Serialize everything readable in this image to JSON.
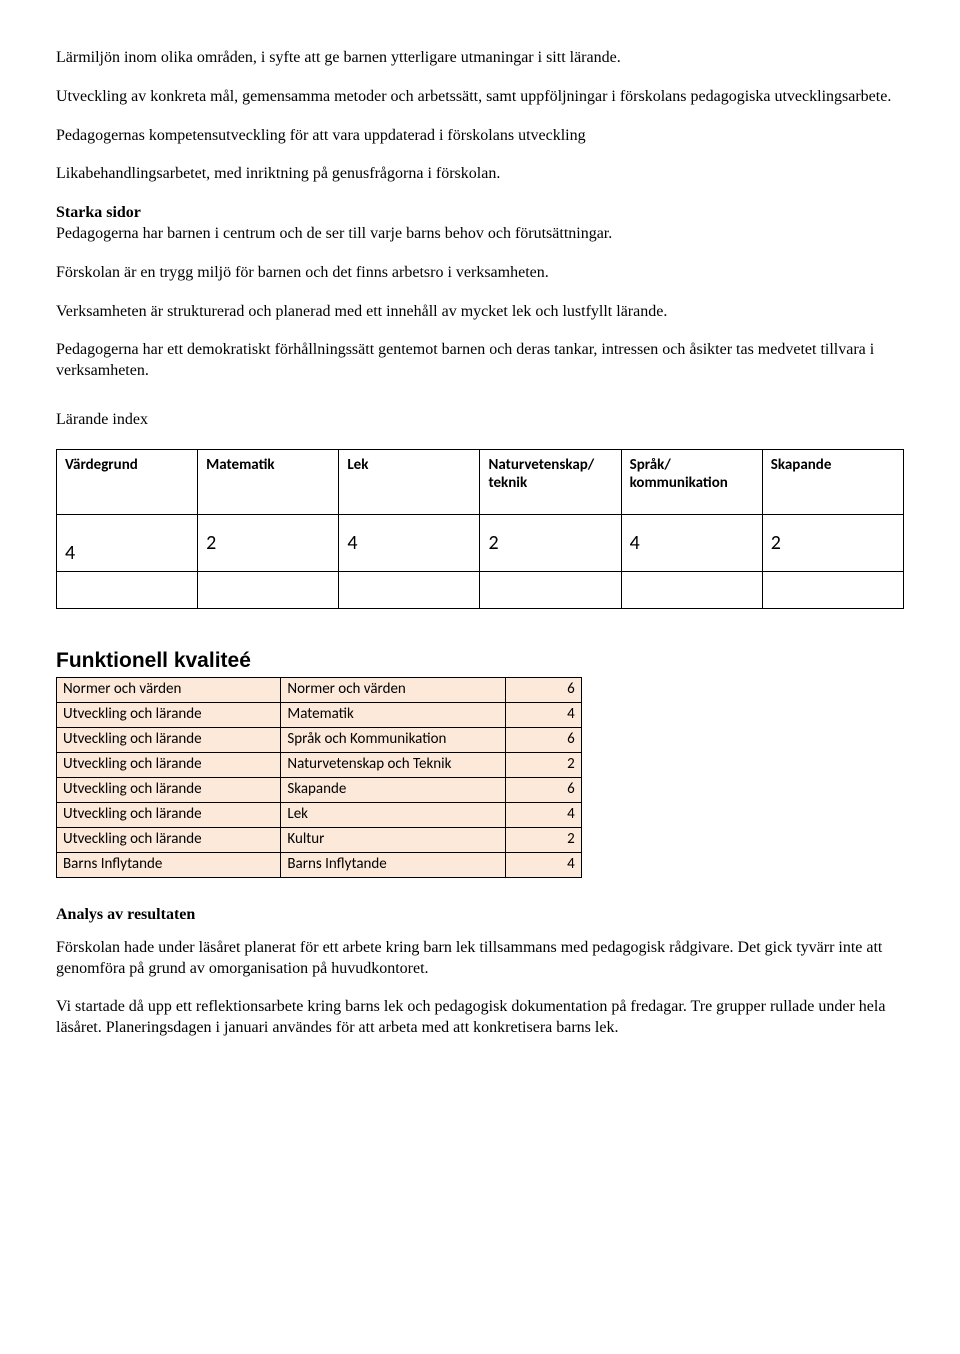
{
  "paragraphs": {
    "p1": "Lärmiljön inom olika områden, i syfte att ge barnen ytterligare utmaningar i sitt lärande.",
    "p2": "Utveckling av konkreta mål, gemensamma metoder och arbetssätt, samt uppföljningar i förskolans pedagogiska utvecklingsarbete.",
    "p3": "Pedagogernas kompetensutveckling för att vara uppdaterad i förskolans utveckling",
    "p4": "Likabehandlingsarbetet, med inriktning på genusfrågorna i förskolan.",
    "starka_sidor_label": "Starka sidor",
    "p5": "Pedagogerna har barnen i centrum och de ser till varje barns behov och förutsättningar.",
    "p6": "Förskolan är en trygg miljö för barnen och det finns arbetsro i verksamheten.",
    "p7": "Verksamheten är strukturerad och planerad med ett innehåll av mycket lek och lustfyllt lärande.",
    "p8": "Pedagogerna har ett demokratiskt förhållningssätt gentemot barnen och deras tankar, intressen och åsikter tas medvetet tillvara i verksamheten.",
    "larande_index_label": "Lärande index",
    "analys_heading": "Analys av resultaten",
    "p9": "Förskolan hade under läsåret planerat för ett arbete kring barn lek tillsammans med pedagogisk rådgivare. Det gick tyvärr inte att genomföra på grund av omorganisation på huvudkontoret.",
    "p10": "Vi startade då upp ett reflektionsarbete kring barns lek och pedagogisk dokumentation på fredagar. Tre grupper rullade under hela läsåret. Planeringsdagen i januari användes för att arbeta med att konkretisera barns lek."
  },
  "index_table": {
    "headers": {
      "c0": "Värdegrund",
      "c1": "Matematik",
      "c2": "Lek",
      "c3a": "Naturvetenskap/",
      "c3b": "teknik",
      "c4a": "Språk/",
      "c4b": "kommunikation",
      "c5": "Skapande"
    },
    "values": {
      "v0": "4",
      "v1": "2",
      "v2": "4",
      "v3": "2",
      "v4": "4",
      "v5": "2"
    }
  },
  "functional_quality": {
    "title": "Funktionell kvaliteé",
    "rows": [
      {
        "a": "Normer och värden",
        "b": "Normer och värden",
        "n": "6"
      },
      {
        "a": "Utveckling och lärande",
        "b": "Matematik",
        "n": "4"
      },
      {
        "a": "Utveckling och lärande",
        "b": "Språk och Kommunikation",
        "n": "6"
      },
      {
        "a": "Utveckling och lärande",
        "b": "Naturvetenskap och Teknik",
        "n": "2"
      },
      {
        "a": "Utveckling och lärande",
        "b": "Skapande",
        "n": "6"
      },
      {
        "a": "Utveckling och lärande",
        "b": "Lek",
        "n": "4"
      },
      {
        "a": "Utveckling och lärande",
        "b": "Kultur",
        "n": "2"
      },
      {
        "a": "Barns Inflytande",
        "b": "Barns Inflytande",
        "n": "4"
      }
    ]
  },
  "colors": {
    "quality_row_bg": "#fde9d9",
    "border": "#000000",
    "text": "#000000",
    "background": "#ffffff"
  }
}
